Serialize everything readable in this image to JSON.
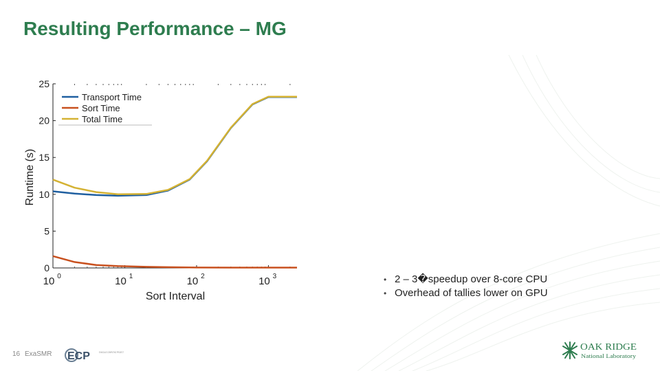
{
  "slide": {
    "title": "Resulting Performance – MG",
    "bullets": [
      "2 – 3�speedup over 8-core CPU",
      "Overhead of tallies lower on GPU"
    ],
    "bullet_marker": "•",
    "footer": {
      "page_number": "16",
      "project": "ExaSMR"
    },
    "logos": {
      "left": {
        "text": "ECP",
        "caption": "EXASCALE COMPUTING PROJECT"
      },
      "right": {
        "name_line1": "OAK RIDGE",
        "name_line2": "National Laboratory"
      }
    }
  },
  "chart_data": {
    "type": "line",
    "xscale": "log",
    "xlim": [
      1,
      2500
    ],
    "ylim": [
      0,
      25
    ],
    "xlabel": "Sort Interval",
    "ylabel": "Runtime (s)",
    "xticks": [
      {
        "value": 1,
        "base": "10",
        "exp": "0"
      },
      {
        "value": 10,
        "base": "10",
        "exp": "1"
      },
      {
        "value": 100,
        "base": "10",
        "exp": "2"
      },
      {
        "value": 1000,
        "base": "10",
        "exp": "3"
      }
    ],
    "yticks": [
      0,
      5,
      10,
      15,
      20,
      25
    ],
    "legend_position": "top-left",
    "series": [
      {
        "name": "Transport Time",
        "color": "#1f5fa0",
        "points": [
          [
            1,
            10.4
          ],
          [
            2,
            10.1
          ],
          [
            4,
            9.9
          ],
          [
            8,
            9.8
          ],
          [
            20,
            9.9
          ],
          [
            40,
            10.5
          ],
          [
            80,
            12
          ],
          [
            140,
            14.5
          ],
          [
            300,
            19
          ],
          [
            600,
            22.2
          ],
          [
            1000,
            23.2
          ],
          [
            2500,
            23.2
          ]
        ]
      },
      {
        "name": "Sort Time",
        "color": "#c8501e",
        "points": [
          [
            1,
            1.6
          ],
          [
            2,
            0.8
          ],
          [
            4,
            0.4
          ],
          [
            8,
            0.25
          ],
          [
            20,
            0.15
          ],
          [
            40,
            0.1
          ],
          [
            100,
            0.06
          ],
          [
            300,
            0.05
          ],
          [
            1000,
            0.05
          ],
          [
            2500,
            0.05
          ]
        ]
      },
      {
        "name": "Total Time",
        "color": "#d4b233",
        "points": [
          [
            1,
            12
          ],
          [
            2,
            10.9
          ],
          [
            4,
            10.3
          ],
          [
            8,
            10
          ],
          [
            20,
            10.05
          ],
          [
            40,
            10.6
          ],
          [
            80,
            12.05
          ],
          [
            140,
            14.55
          ],
          [
            300,
            19.05
          ],
          [
            600,
            22.25
          ],
          [
            1000,
            23.25
          ],
          [
            2500,
            23.25
          ]
        ]
      }
    ]
  }
}
